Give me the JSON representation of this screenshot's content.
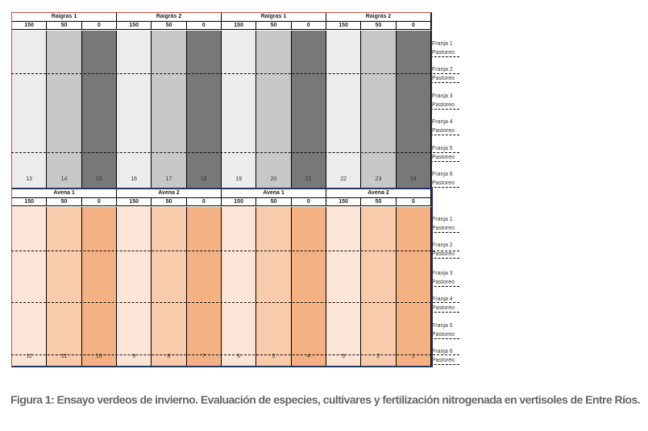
{
  "colors": {
    "ryegrass": [
      "#ececec",
      "#c8c8c8",
      "#787878"
    ],
    "oats": [
      "#fce4d6",
      "#f8cbad",
      "#f4b183"
    ],
    "top_border": "#c0504d",
    "section_border": "#1f3864"
  },
  "doses": [
    "150",
    "50",
    "0"
  ],
  "sections": [
    {
      "name": "ryegrass",
      "groups": [
        "Raigras 1",
        "Raigrás 2",
        "Raigras 1",
        "Raigrás 2"
      ],
      "plots": [
        "13",
        "14",
        "15",
        "16",
        "17",
        "18",
        "19",
        "20",
        "21",
        "22",
        "23",
        "24"
      ],
      "strips": [
        {
          "franja": "Franja 1",
          "uso": "Pastoreo"
        },
        {
          "franja": "Franja 2",
          "uso": "Pastoreo"
        },
        {
          "franja": "Franja 3",
          "uso": "Pastoreo"
        },
        {
          "franja": "Franja 4",
          "uso": "Pastoreo"
        },
        {
          "franja": "Franja 5",
          "uso": "Pastoreo"
        },
        {
          "franja": "Franja 6",
          "uso": "Pastoreo"
        }
      ]
    },
    {
      "name": "oats",
      "groups": [
        "Avena 1",
        "Avena 2",
        "Avena 1",
        "Avena 2"
      ],
      "plots": [
        "12",
        "11",
        "10",
        "9",
        "8",
        "7",
        "6",
        "5",
        "4",
        "3",
        "2",
        "1"
      ],
      "strips": [
        {
          "franja": "Franja 1",
          "uso": "Pastoreo"
        },
        {
          "franja": "Franja 2",
          "uso": "Pastoreo"
        },
        {
          "franja": "Franja 3",
          "uso": "Pastoreo"
        },
        {
          "franja": "Franja 4",
          "uso": "Pastoreo"
        },
        {
          "franja": "Franja 5",
          "uso": "Pastoreo"
        },
        {
          "franja": "Franja 6",
          "uso": "Pastoreo"
        }
      ]
    }
  ],
  "caption": "Figura 1: Ensayo verdeos de invierno. Evaluación de especies, cultivares y fertilización nitrogenada en vertisoles de Entre Ríos."
}
